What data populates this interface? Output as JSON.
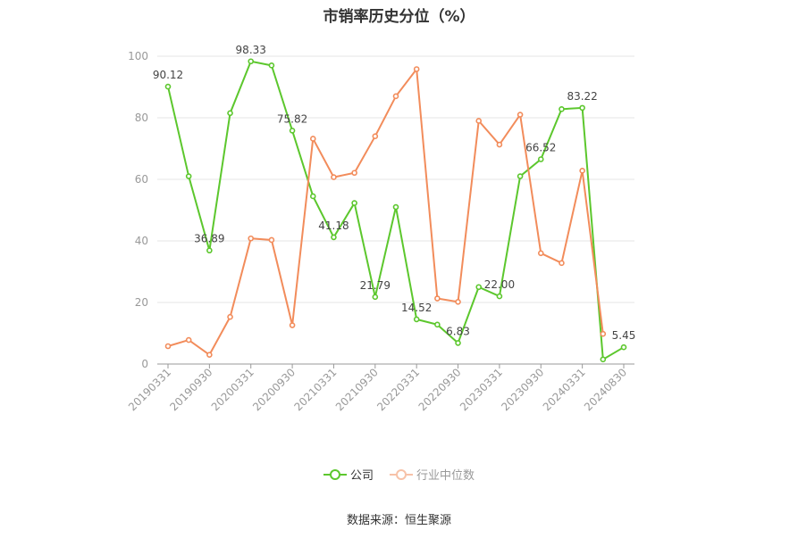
{
  "chart_data": {
    "type": "line",
    "title": "市销率历史分位（%）",
    "x": [
      "20190331",
      "20190630",
      "20190930",
      "20191231",
      "20200331",
      "20200630",
      "20200930",
      "20201231",
      "20210331",
      "20210630",
      "20210930",
      "20211231",
      "20220331",
      "20220630",
      "20220930",
      "20221231",
      "20230331",
      "20230630",
      "20230930",
      "20231231",
      "20240331",
      "20240630",
      "20240830"
    ],
    "x_tick_labels": [
      "20190331",
      "20190930",
      "20200331",
      "20200930",
      "20210331",
      "20210930",
      "20220331",
      "20220930",
      "20230331",
      "20230930",
      "20240331",
      "20240830"
    ],
    "ylim": [
      0,
      100
    ],
    "y_ticks": [
      0,
      20,
      40,
      60,
      80,
      100
    ],
    "grid": true,
    "legend_position": "bottom",
    "series": [
      {
        "name": "公司",
        "color": "#5cc72d",
        "values": [
          90.12,
          61.0,
          36.89,
          81.5,
          98.33,
          97.0,
          75.82,
          54.5,
          41.18,
          52.3,
          21.79,
          51.0,
          14.52,
          12.8,
          6.83,
          25.0,
          22.0,
          61.0,
          66.52,
          82.8,
          83.22,
          1.5,
          5.45
        ],
        "data_labels": {
          "0": "90.12",
          "2": "36.89",
          "4": "98.33",
          "6": "75.82",
          "8": "41.18",
          "10": "21.79",
          "12": "14.52",
          "14": "6.83",
          "16": "22.00",
          "18": "66.52",
          "20": "83.22",
          "22": "5.45"
        }
      },
      {
        "name": "行业中位数",
        "color": "#f28c5b",
        "values": [
          5.8,
          7.8,
          3.0,
          15.3,
          40.8,
          40.3,
          12.6,
          73.2,
          60.7,
          62.1,
          74.0,
          87.0,
          95.8,
          21.3,
          20.2,
          79.0,
          71.3,
          81.0,
          36.0,
          32.8,
          62.8,
          9.8,
          null
        ]
      }
    ]
  },
  "legend": {
    "company_label": "公司",
    "industry_label": "行业中位数"
  },
  "footer": {
    "source": "数据来源：恒生聚源"
  }
}
